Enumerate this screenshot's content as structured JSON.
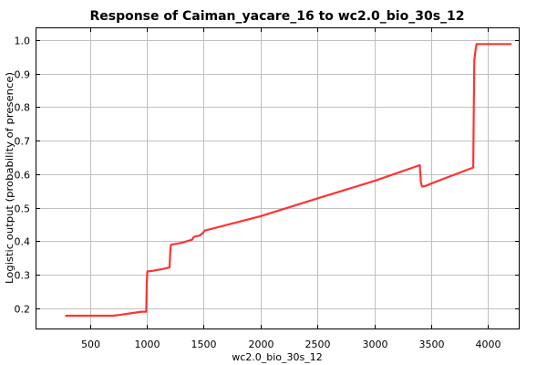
{
  "chart_data": {
    "type": "line",
    "title": "Response of Caiman_yacare_16 to wc2.0_bio_30s_12",
    "xlabel": "wc2.0_bio_30s_12",
    "ylabel": "Logistic output (probability of presence)",
    "xlim": [
      30,
      4270
    ],
    "ylim": [
      0.14,
      1.035
    ],
    "xticks": [
      500,
      1000,
      1500,
      2000,
      2500,
      3000,
      3500,
      4000
    ],
    "yticks": [
      0.2,
      0.3,
      0.4,
      0.5,
      0.6,
      0.7,
      0.8,
      0.9,
      1.0
    ],
    "xtick_labels": [
      "500",
      "1000",
      "1500",
      "2000",
      "2500",
      "3000",
      "3500",
      "4000"
    ],
    "ytick_labels": [
      "0.2",
      "0.3",
      "0.4",
      "0.5",
      "0.6",
      "0.7",
      "0.8",
      "0.9",
      "1.0"
    ],
    "grid": true,
    "series": [
      {
        "color": "#ff3333",
        "x": [
          290,
          700,
          750,
          850,
          950,
          995,
          1000,
          1005,
          1050,
          1100,
          1150,
          1200,
          1205,
          1210,
          1215,
          1300,
          1400,
          1410,
          1430,
          1450,
          1470,
          1475,
          1480,
          1490,
          1500,
          1510,
          2000,
          2500,
          3000,
          3400,
          3405,
          3410,
          3420,
          3450,
          3500,
          3600,
          3700,
          3800,
          3870,
          3875,
          3880,
          3890,
          3900,
          4200
        ],
        "y": [
          0.178,
          0.178,
          0.18,
          0.185,
          0.19,
          0.19,
          0.275,
          0.31,
          0.312,
          0.315,
          0.318,
          0.322,
          0.36,
          0.385,
          0.39,
          0.395,
          0.405,
          0.412,
          0.415,
          0.416,
          0.418,
          0.42,
          0.422,
          0.423,
          0.428,
          0.432,
          0.475,
          0.528,
          0.58,
          0.627,
          0.6,
          0.575,
          0.563,
          0.565,
          0.572,
          0.585,
          0.598,
          0.611,
          0.62,
          0.8,
          0.94,
          0.97,
          0.988,
          0.988
        ]
      }
    ]
  }
}
